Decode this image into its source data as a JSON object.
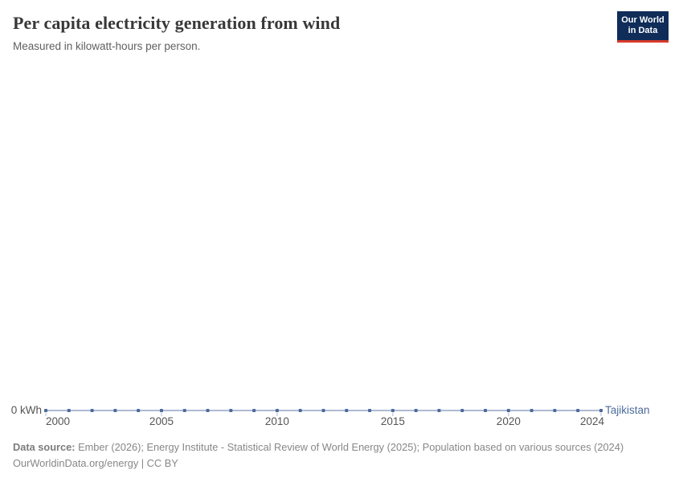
{
  "header": {
    "title": "Per capita electricity generation from wind",
    "subtitle": "Measured in kilowatt-hours per person.",
    "logo": {
      "line1": "Our World",
      "line2": "in Data",
      "background_color": "#102d59",
      "stripe_color": "#d93a2b"
    }
  },
  "chart_data": {
    "type": "line",
    "title": "Per capita electricity generation from wind",
    "subtitle": "Measured in kilowatt-hours per person.",
    "entity": "Tajikistan",
    "xlabel": "",
    "ylabel": "kilowatt-hours per person",
    "y_zero_label": "0 kWh",
    "x": [
      2000,
      2001,
      2002,
      2003,
      2004,
      2005,
      2006,
      2007,
      2008,
      2009,
      2010,
      2011,
      2012,
      2013,
      2014,
      2015,
      2016,
      2017,
      2018,
      2019,
      2020,
      2021,
      2022,
      2023,
      2024
    ],
    "x_ticks": [
      2000,
      2005,
      2010,
      2015,
      2020,
      2024
    ],
    "x_range": [
      2000,
      2024
    ],
    "y_values_shown": [
      0
    ],
    "grid": false,
    "legend_position": "end-of-line",
    "series": [
      {
        "name": "Tajikistan",
        "color": "#4c6a9c",
        "values": [
          0,
          0,
          0,
          0,
          0,
          0,
          0,
          0,
          0,
          0,
          0,
          0,
          0,
          0,
          0,
          0,
          0,
          0,
          0,
          0,
          0,
          0,
          0,
          0,
          0
        ]
      }
    ]
  },
  "footer": {
    "source_label": "Data source:",
    "sources": "Ember (2026); Energy Institute - Statistical Review of World Energy (2025); Population based on various sources (2024)",
    "citation": "OurWorldinData.org/energy | CC BY"
  }
}
